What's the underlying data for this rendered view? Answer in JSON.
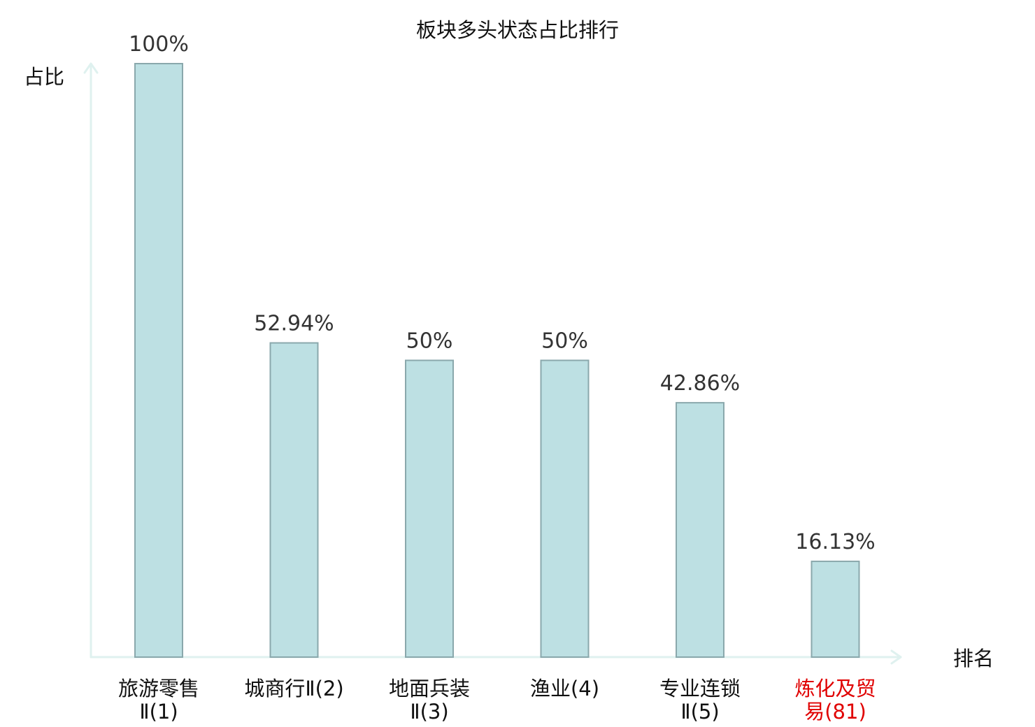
{
  "chart_data": {
    "type": "bar",
    "title": "板块多头状态占比排行",
    "ylabel": "占比",
    "xlabel": "排名",
    "ylim": [
      0,
      100
    ],
    "grid": false,
    "categories": [
      {
        "lines": [
          "旅游零售",
          "Ⅱ(1)"
        ],
        "highlight": false
      },
      {
        "lines": [
          "城商行Ⅱ(2)"
        ],
        "highlight": false
      },
      {
        "lines": [
          "地面兵装",
          "Ⅱ(3)"
        ],
        "highlight": false
      },
      {
        "lines": [
          "渔业(4)"
        ],
        "highlight": false
      },
      {
        "lines": [
          "专业连锁",
          "Ⅱ(5)"
        ],
        "highlight": false
      },
      {
        "lines": [
          "炼化及贸",
          "易(81)"
        ],
        "highlight": true
      }
    ],
    "values": [
      100,
      52.94,
      50,
      50,
      42.86,
      16.13
    ],
    "value_labels": [
      "100%",
      "52.94%",
      "50%",
      "50%",
      "42.86%",
      "16.13%"
    ]
  },
  "colors": {
    "bar_fill": "#bde0e3",
    "bar_stroke": "#8aa8ac",
    "axis": "#dff1ef",
    "text": "#111111",
    "value_text": "#333333",
    "highlight": "#e00000"
  }
}
